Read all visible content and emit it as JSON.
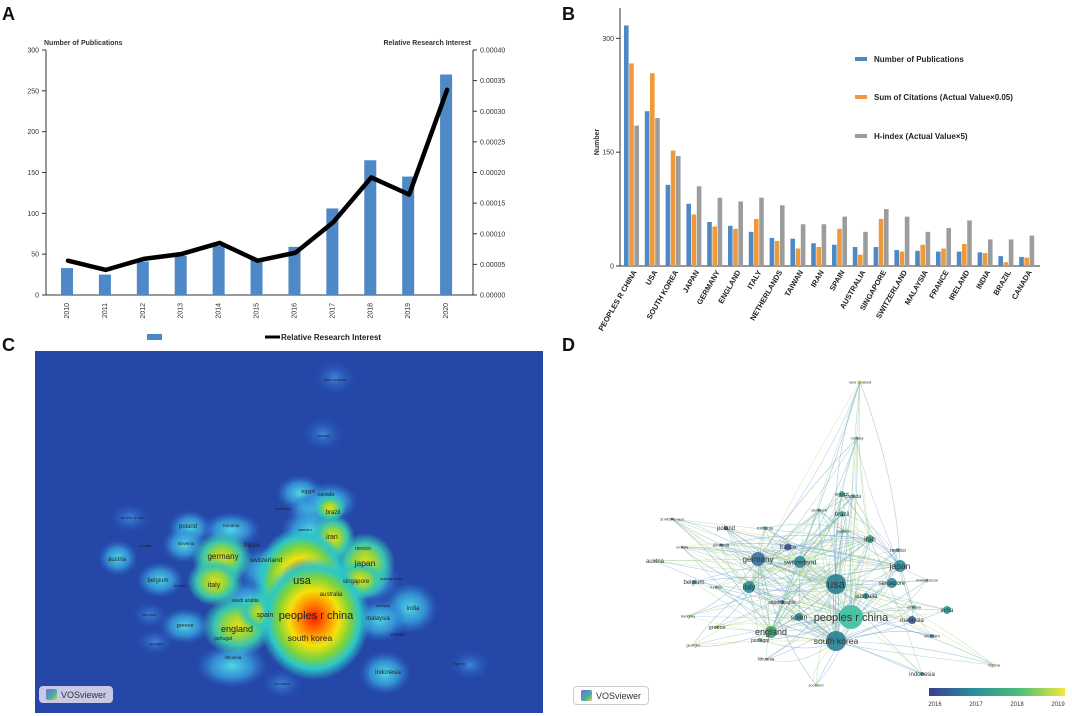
{
  "panel_labels": [
    "A",
    "B",
    "C",
    "D"
  ],
  "chart_data": [
    {
      "type": "bar",
      "title": "",
      "categories": [
        "2010",
        "2011",
        "2012",
        "2013",
        "2014",
        "2015",
        "2016",
        "2017",
        "2018",
        "2019",
        "2020"
      ],
      "series": [
        {
          "name": "Number of Publications",
          "type": "bar",
          "axis": "left",
          "values": [
            33,
            25,
            41,
            48,
            60,
            44,
            59,
            106,
            165,
            145,
            270
          ]
        },
        {
          "name": "Relative Research Interest",
          "type": "line",
          "axis": "right",
          "values": [
            5.6e-05,
            4.1e-05,
            5.9e-05,
            6.7e-05,
            8.5e-05,
            5.6e-05,
            6.9e-05,
            0.000119,
            0.000192,
            0.000164,
            0.000335
          ]
        }
      ],
      "ylabel": "Number of Publications",
      "y2label": "Relative Research Interest",
      "ylim": [
        0,
        300
      ],
      "y2lim": [
        0,
        0.0004
      ],
      "yticks": [
        "0",
        "50",
        "100",
        "150",
        "200",
        "250",
        "300"
      ],
      "y2ticks": [
        "0.00000",
        "0.00005",
        "0.00010",
        "0.00015",
        "0.00020",
        "0.00025",
        "0.00030",
        "0.00035",
        "0.00040"
      ],
      "legend": [
        "",
        "Relative Research Interest"
      ],
      "legend_position": "bottom",
      "colors": {
        "bar": "#4f88c6",
        "line": "#000000"
      }
    },
    {
      "type": "bar",
      "title": "",
      "categories": [
        "PEOPLES R CHINA",
        "USA",
        "SOUTH KOREA",
        "JAPAN",
        "GERMANY",
        "ENGLAND",
        "ITALY",
        "NETHERLANDS",
        "TAIWAN",
        "IRAN",
        "SPAIN",
        "AUSTRALIA",
        "SINGAPORE",
        "SWITZERLAND",
        "MALAYSIA",
        "FRANCE",
        "IRELAND",
        "INDIA",
        "BRAZIL",
        "CANADA"
      ],
      "series": [
        {
          "name": "Number of Publications",
          "values": [
            317,
            204,
            107,
            82,
            58,
            53,
            45,
            37,
            36,
            30,
            28,
            25,
            25,
            21,
            20,
            19,
            19,
            18,
            13,
            12
          ]
        },
        {
          "name": "Sum of Citations (Actual Value×0.05)",
          "values": [
            267,
            254,
            152,
            68,
            52,
            49,
            62,
            33,
            23,
            25,
            49,
            15,
            62,
            19,
            28,
            23,
            29,
            17,
            5,
            11
          ]
        },
        {
          "name": "H-index (Actual Value×5)",
          "values": [
            185,
            195,
            145,
            105,
            90,
            85,
            90,
            80,
            55,
            55,
            65,
            45,
            75,
            65,
            45,
            50,
            60,
            35,
            35,
            40
          ]
        }
      ],
      "ylabel": "Number",
      "xlabel": "",
      "ylim": [
        0,
        340
      ],
      "yticks": [
        "0",
        "150",
        "300"
      ],
      "legend_position": "top-right",
      "colors": [
        "#4f88c6",
        "#ef9a3a",
        "#9c9c9c"
      ]
    }
  ],
  "density_map": {
    "labels": [
      {
        "text": "new zealand"
      },
      {
        "text": "norway"
      },
      {
        "text": "egypt"
      },
      {
        "text": "canada"
      },
      {
        "text": "denmark"
      },
      {
        "text": "brazil"
      },
      {
        "text": "st kitts & nevi"
      },
      {
        "text": "poland"
      },
      {
        "text": "romania"
      },
      {
        "text": "sweden"
      },
      {
        "text": "iran"
      },
      {
        "text": "croatia"
      },
      {
        "text": "slovenia"
      },
      {
        "text": "france"
      },
      {
        "text": "mexico"
      },
      {
        "text": "austria"
      },
      {
        "text": "germany"
      },
      {
        "text": "switzerland"
      },
      {
        "text": "japan"
      },
      {
        "text": "belgium"
      },
      {
        "text": "tunisia"
      },
      {
        "text": "italy"
      },
      {
        "text": "usa"
      },
      {
        "text": "singapore"
      },
      {
        "text": "madagascar"
      },
      {
        "text": "australia"
      },
      {
        "text": "saudi arabia"
      },
      {
        "text": "hungary"
      },
      {
        "text": "spain"
      },
      {
        "text": "peoples r china"
      },
      {
        "text": "ethiopia"
      },
      {
        "text": "india"
      },
      {
        "text": "greece"
      },
      {
        "text": "malaysia"
      },
      {
        "text": "england"
      },
      {
        "text": "portugal"
      },
      {
        "text": "vietnam"
      },
      {
        "text": "georgia"
      },
      {
        "text": "south korea"
      },
      {
        "text": "lithuania"
      },
      {
        "text": "nigeria"
      },
      {
        "text": "indonesia"
      },
      {
        "text": "scotland"
      }
    ],
    "brand": "VOSviewer"
  },
  "network_map": {
    "labels": [
      {
        "text": "new zealand"
      },
      {
        "text": "norway"
      },
      {
        "text": "egypt"
      },
      {
        "text": "canada"
      },
      {
        "text": "denmark"
      },
      {
        "text": "brazil"
      },
      {
        "text": "st kitts & nevi"
      },
      {
        "text": "poland"
      },
      {
        "text": "romania"
      },
      {
        "text": "sweden"
      },
      {
        "text": "iran"
      },
      {
        "text": "croatia"
      },
      {
        "text": "slovenia"
      },
      {
        "text": "france"
      },
      {
        "text": "mexico"
      },
      {
        "text": "austria"
      },
      {
        "text": "germany"
      },
      {
        "text": "switzerland"
      },
      {
        "text": "japan"
      },
      {
        "text": "belgium"
      },
      {
        "text": "tunisia"
      },
      {
        "text": "italy"
      },
      {
        "text": "usa"
      },
      {
        "text": "singapore"
      },
      {
        "text": "madagascar"
      },
      {
        "text": "australia"
      },
      {
        "text": "saudi arabia"
      },
      {
        "text": "hungary"
      },
      {
        "text": "spain"
      },
      {
        "text": "peoples r china"
      },
      {
        "text": "ethiopia"
      },
      {
        "text": "india"
      },
      {
        "text": "greece"
      },
      {
        "text": "malaysia"
      },
      {
        "text": "england"
      },
      {
        "text": "portugal"
      },
      {
        "text": "vietnam"
      },
      {
        "text": "georgia"
      },
      {
        "text": "south korea"
      },
      {
        "text": "lithuania"
      },
      {
        "text": "nigeria"
      },
      {
        "text": "indonesia"
      },
      {
        "text": "scotland"
      }
    ],
    "colorbar_ticks": [
      "2016",
      "2017",
      "2018",
      "2019"
    ],
    "colorbar_colors": [
      "#3b3f8f",
      "#2a8e9b",
      "#4bbf79",
      "#f2e93a"
    ],
    "brand": "VOSviewer"
  }
}
